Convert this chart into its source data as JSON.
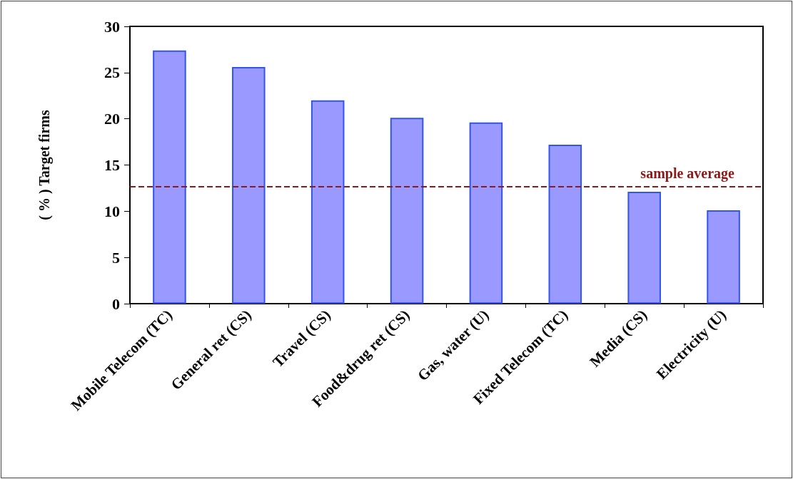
{
  "chart_data": {
    "type": "bar",
    "ylabel": "( % ) Target firms",
    "categories": [
      "Mobile Telecom (TC)",
      "General ret (CS)",
      "Travel (CS)",
      "Food&drug ret (CS)",
      "Gas, water (U)",
      "Fixed Telecom (TC)",
      "Media (CS)",
      "Electricity (U)"
    ],
    "values": [
      27.4,
      25.6,
      22.0,
      20.1,
      19.6,
      17.2,
      12.1,
      10.1
    ],
    "color": "#9999ff",
    "ylim": [
      0,
      30
    ],
    "yticks": [
      0,
      5,
      10,
      15,
      20,
      25,
      30
    ],
    "grid": false,
    "ref_lines": [
      {
        "axis": "y",
        "value": 12.7,
        "label": "sample average",
        "color": "#8b1a1a",
        "line_style": "dashed"
      }
    ]
  }
}
